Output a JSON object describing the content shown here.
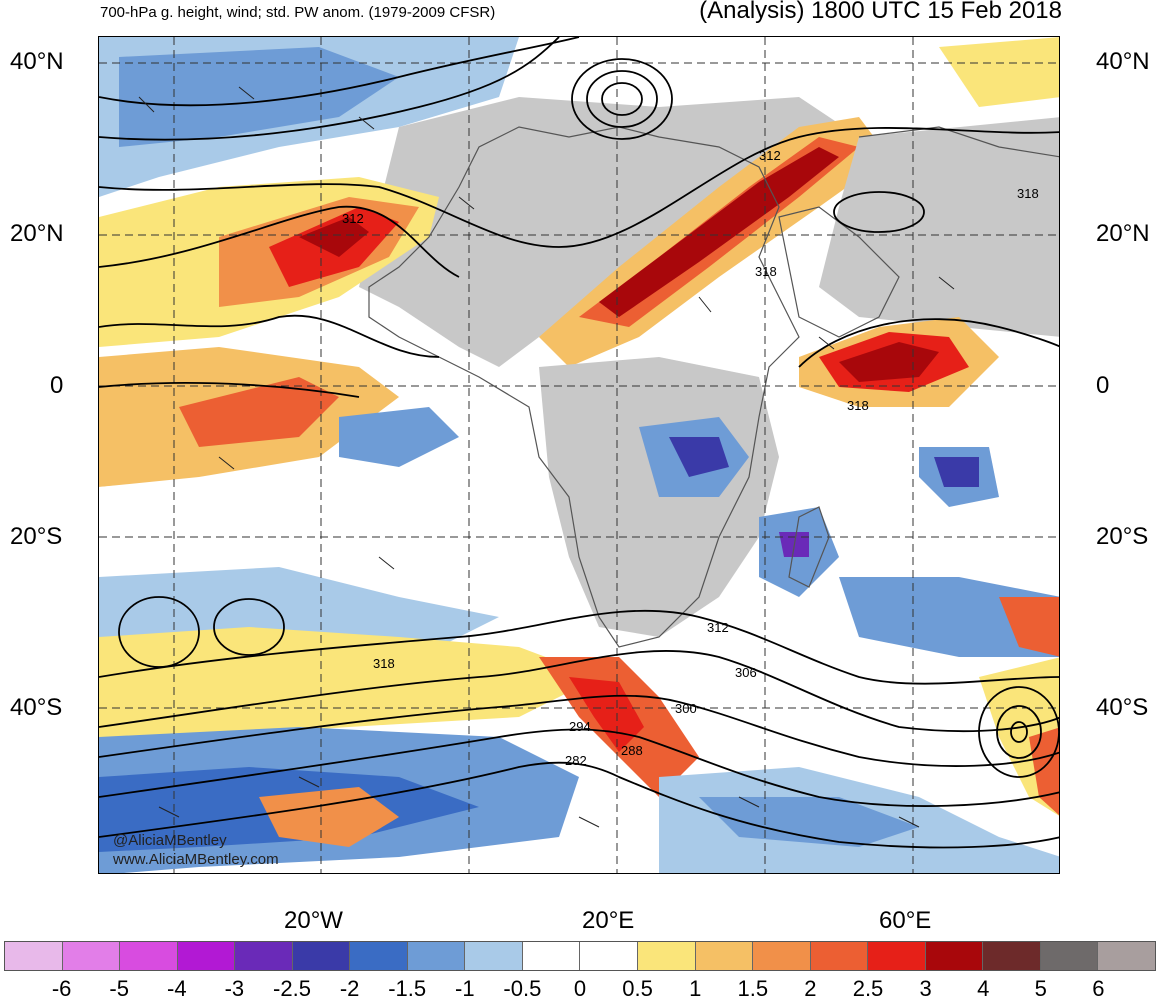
{
  "header": {
    "left_title": "700-hPa g. height, wind; std. PW anom. (1979-2009 CFSR)",
    "right_title": "(Analysis) 1800 UTC 15 Feb 2018"
  },
  "map": {
    "lat_labels": [
      "40°N",
      "20°N",
      "0",
      "20°S",
      "40°S"
    ],
    "lon_labels": [
      "20°W",
      "20°E",
      "60°E"
    ],
    "contour_labels": [
      "312",
      "312",
      "318",
      "318",
      "318",
      "318",
      "312",
      "306",
      "300",
      "294",
      "288",
      "282"
    ],
    "watermark": [
      "@AliciaMBentley",
      "www.AliciaMBentley.com"
    ]
  },
  "colorbar": {
    "colors": [
      "#e8b9ea",
      "#e27ee8",
      "#d84ce0",
      "#b219d4",
      "#6a2ab8",
      "#3a3aa8",
      "#3a6cc4",
      "#6e9cd6",
      "#a9cae8",
      "#ffffff",
      "#ffffff",
      "#fae57a",
      "#f5c065",
      "#f19049",
      "#ec5f33",
      "#e62018",
      "#a8070b",
      "#6d2a2a",
      "#6e6a6a",
      "#a89e9e"
    ],
    "tick_labels": [
      "-6",
      "-5",
      "-4",
      "-3",
      "-2.5",
      "-2",
      "-1.5",
      "-1",
      "-0.5",
      "0",
      "0.5",
      "1",
      "1.5",
      "2",
      "2.5",
      "3",
      "4",
      "5",
      "6"
    ]
  }
}
